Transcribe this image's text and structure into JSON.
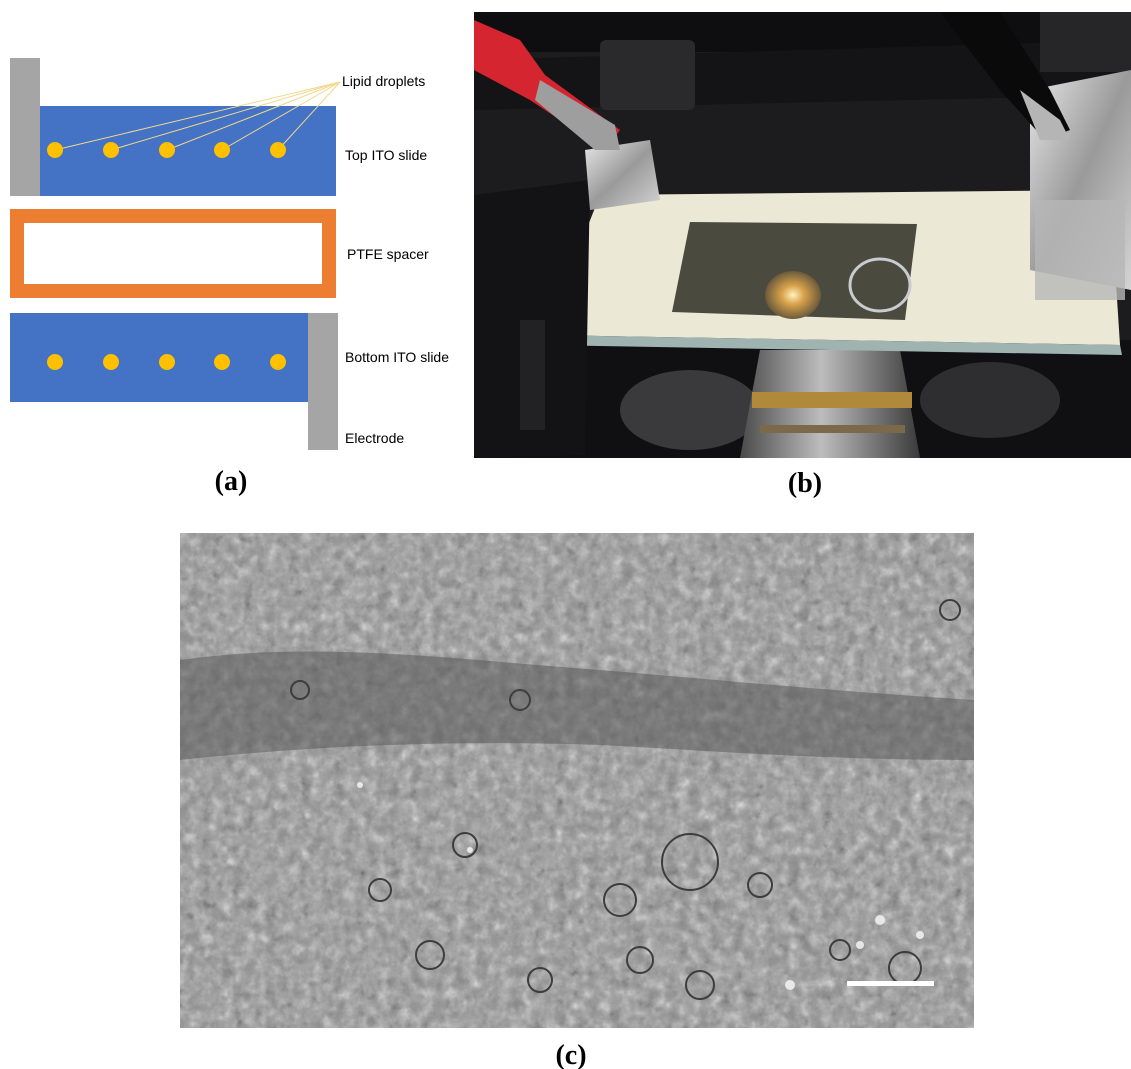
{
  "figure": {
    "panel_a": {
      "caption": "(a)",
      "labels": {
        "lipid_droplets": "Lipid droplets",
        "top_ito_slide": "Top ITO slide",
        "ptfe_spacer": "PTFE spacer",
        "bottom_ito_slide": "Bottom ITO slide",
        "electrode": "Electrode"
      },
      "colors": {
        "ito_slide": "#4472C4",
        "electrode": "#A5A5A5",
        "spacer": "#ED7D31",
        "droplet": "#FFC000",
        "leader_line": "#F2D88A"
      },
      "droplets_per_slide": 5
    },
    "panel_b": {
      "caption": "(b)",
      "image": "photo of ITO electroformation chamber on microscope stage with clip electrodes"
    },
    "panel_c": {
      "caption": "(c)",
      "image": "phase-contrast micrograph of lipid vesicles",
      "has_scale_bar": true
    }
  }
}
